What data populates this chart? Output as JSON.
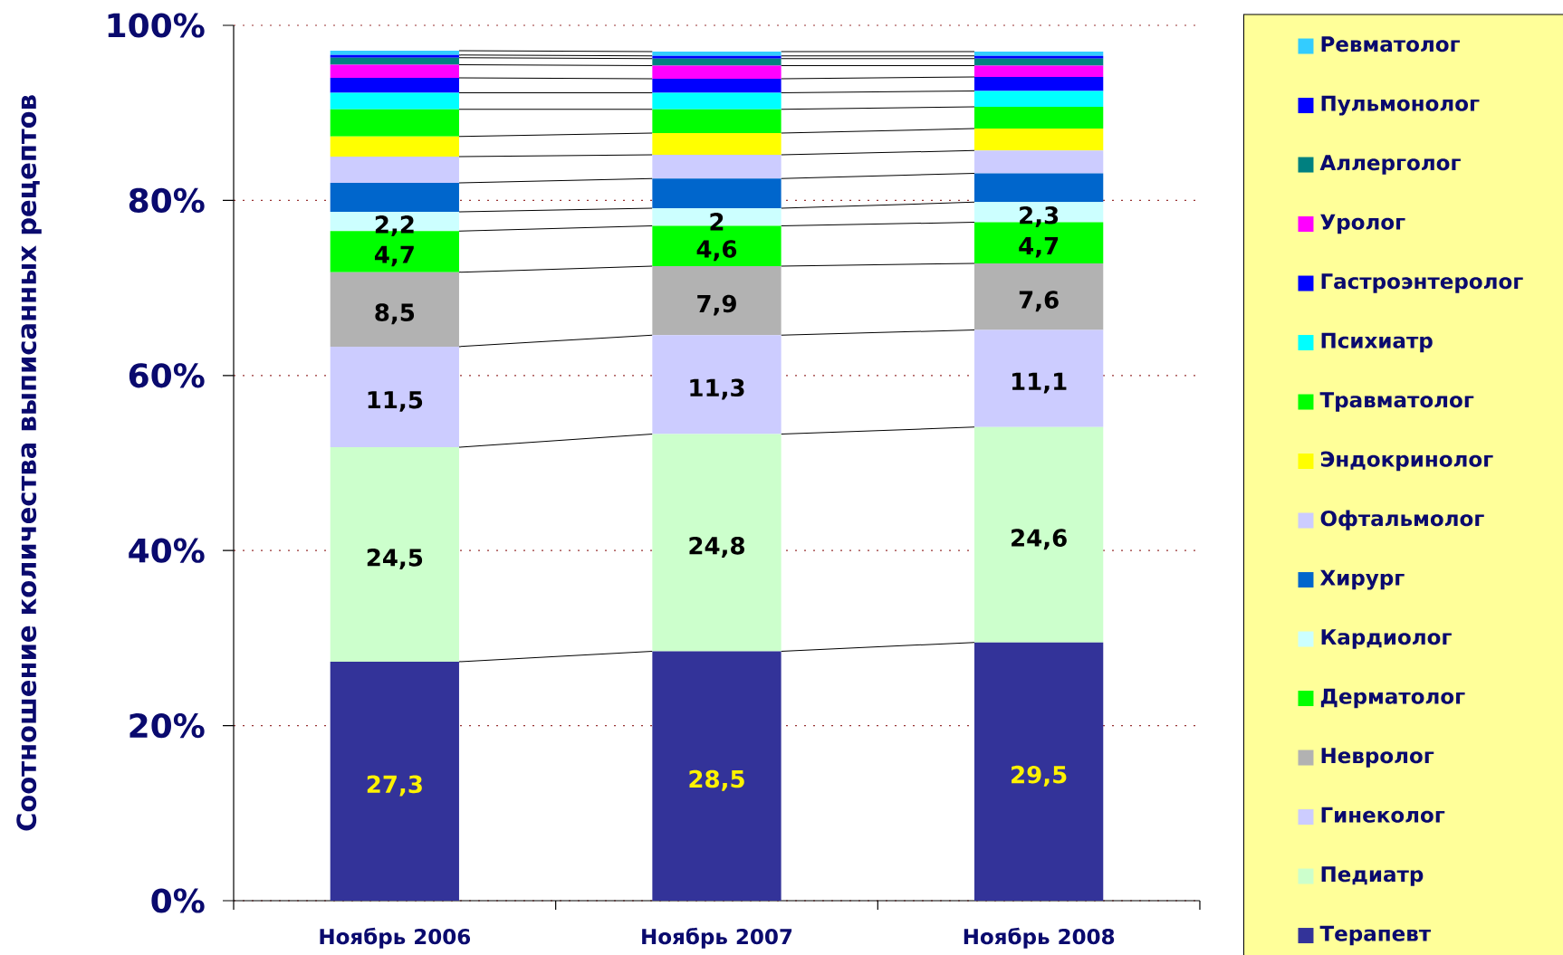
{
  "chart_data": {
    "type": "bar",
    "stacked": true,
    "ylabel": "Соотношение количества выписанных рецептов",
    "categories": [
      "Ноябрь 2006",
      "Ноябрь 2007",
      "Ноябрь 2008"
    ],
    "ylim": [
      0,
      100
    ],
    "yticks": [
      {
        "value": 0,
        "label": "0%"
      },
      {
        "value": 20,
        "label": "20%"
      },
      {
        "value": 40,
        "label": "40%"
      },
      {
        "value": 60,
        "label": "60%"
      },
      {
        "value": 80,
        "label": "80%"
      },
      {
        "value": 100,
        "label": "100%"
      }
    ],
    "grid": "y",
    "legend": "right",
    "series": [
      {
        "name": "Терапевт",
        "color": "#333399",
        "values": [
          27.3,
          28.5,
          29.5
        ],
        "value_labels": [
          "27,3",
          "28,5",
          "29,5"
        ]
      },
      {
        "name": "Педиатр",
        "color": "#ccffcc",
        "values": [
          24.5,
          24.8,
          24.6
        ],
        "value_labels": [
          "24,5",
          "24,8",
          "24,6"
        ]
      },
      {
        "name": "Гинеколог",
        "color": "#ccccff",
        "values": [
          11.5,
          11.3,
          11.1
        ],
        "value_labels": [
          "11,5",
          "11,3",
          "11,1"
        ]
      },
      {
        "name": "Невролог",
        "color": "#b2b2b2",
        "values": [
          8.5,
          7.9,
          7.6
        ],
        "value_labels": [
          "8,5",
          "7,9",
          "7,6"
        ]
      },
      {
        "name": "Дерматолог",
        "color": "#00ff00",
        "values": [
          4.7,
          4.6,
          4.7
        ],
        "value_labels": [
          "4,7",
          "4,6",
          "4,7"
        ]
      },
      {
        "name": "Кардиолог",
        "color": "#ccffff",
        "values": [
          2.2,
          2,
          2.3
        ],
        "value_labels": [
          "2,2",
          "2",
          "2,3"
        ]
      },
      {
        "name": "Хирург",
        "color": "#0066cc",
        "values": [
          3.3,
          3.4,
          3.3
        ]
      },
      {
        "name": "Офтальмолог",
        "color": "#ccccff",
        "values": [
          3.0,
          2.7,
          2.6
        ]
      },
      {
        "name": "Эндокринолог",
        "color": "#ffff00",
        "values": [
          2.3,
          2.5,
          2.5
        ]
      },
      {
        "name": "Травматолог",
        "color": "#00ff00",
        "values": [
          3.1,
          2.7,
          2.5
        ]
      },
      {
        "name": "Психиатр",
        "color": "#00ffff",
        "values": [
          1.9,
          1.9,
          1.8
        ]
      },
      {
        "name": "Гастроэнтеролог",
        "color": "#0000ff",
        "values": [
          1.7,
          1.6,
          1.6
        ]
      },
      {
        "name": "Уролог",
        "color": "#ff00ff",
        "values": [
          1.5,
          1.5,
          1.3
        ]
      },
      {
        "name": "Аллерголог",
        "color": "#008080",
        "values": [
          0.8,
          0.8,
          0.8
        ]
      },
      {
        "name": "Пульмонолог",
        "color": "#0000ff",
        "values": [
          0.3,
          0.3,
          0.3
        ]
      },
      {
        "name": "Ревматолог",
        "color": "#33ccff",
        "values": [
          0.5,
          0.5,
          0.5
        ]
      }
    ]
  }
}
